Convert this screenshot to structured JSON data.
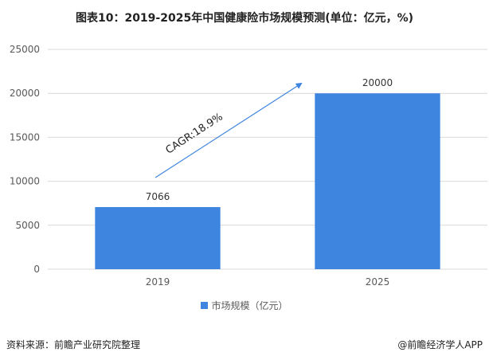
{
  "title": "图表10：2019-2025年中国健康险市场规模预测(单位：亿元，%)",
  "colors": {
    "bar": "#3E85DF",
    "arrow": "#3E85DF",
    "grid": "#D9D9D9"
  },
  "chart_data": {
    "type": "bar",
    "categories": [
      "2019",
      "2025"
    ],
    "series": [
      {
        "name": "市场规模（亿元）",
        "values": [
          7066,
          20000
        ]
      }
    ],
    "data_labels": [
      "7066",
      "20000"
    ],
    "ylim": [
      0,
      25000
    ],
    "yticks": [
      "0",
      "5000",
      "10000",
      "15000",
      "20000",
      "25000"
    ],
    "annotation": "CAGR:18.9%",
    "grid": true,
    "legend_position": "bottom"
  },
  "legend": {
    "label": "市场规模（亿元）"
  },
  "footer": {
    "source": "资料来源：前瞻产业研究院整理",
    "brand": "@前瞻经济学人APP"
  }
}
